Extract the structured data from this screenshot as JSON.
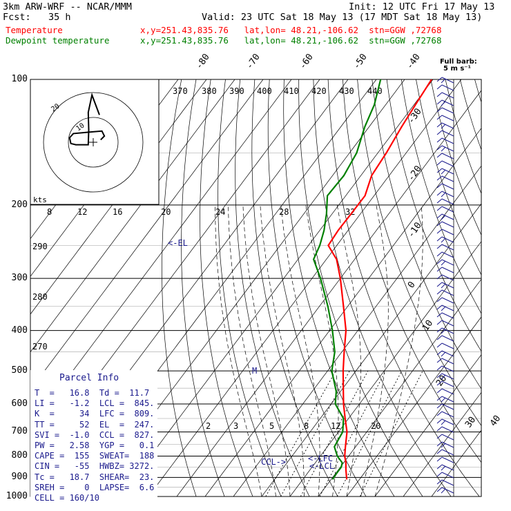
{
  "header": {
    "model": "3km ARW-WRF -- NCAR/MMM",
    "init": "Init: 12 UTC Fri 17 May 13",
    "fcst_label": "Fcst:",
    "fcst_value": "35 h",
    "valid": "Valid: 23 UTC Sat 18 May 13 (17 MDT Sat 18 May 13)",
    "temperature_label": "Temperature",
    "dewpoint_label": "Dewpoint temperature",
    "location_t": "x,y=251.43,835.76   lat,lon= 48.21,-106.62  stn=GGW ,72768",
    "location_td": "x,y=251.43,835.76   lat,lon= 48.21,-106.62  stn=GGW ,72768"
  },
  "barb_legend": {
    "line1": "Full barb:",
    "line2": "5 m s⁻¹"
  },
  "colors": {
    "temperature": "#ff0000",
    "dewpoint": "#008000",
    "text_info": "#1a1a8c"
  },
  "pressure_labels": [
    "100",
    "200",
    "300",
    "400",
    "500",
    "600",
    "700",
    "800",
    "900",
    "1000"
  ],
  "hodograph": {
    "kts_label": "kts",
    "ring_labels": [
      "10",
      "20"
    ]
  },
  "parcel_info": {
    "title": "Parcel Info",
    "rows": [
      "T  =   16.8  Td =  11.7",
      "LI =   -1.2  LCL =  845.",
      "K  =     34  LFC =  809.",
      "TT =     52  EL  =  247.",
      "SVI =  -1.0  CCL =  827.",
      "PW =   2.58  YGP =   0.1",
      "CAPE =  155  SWEAT=  188",
      "CIN =   -55  HWBZ= 3272.",
      "Tc =   18.7  SHEAR=  23.",
      "SREH =    0  LAPSE=  6.6",
      "CELL = 160/10"
    ]
  },
  "level_markers": {
    "el": "<-EL",
    "lfc": "<-LFC",
    "lcl": "<-LCL",
    "ccl": "CCL->",
    "m": "M"
  },
  "chart_data": {
    "type": "line",
    "title": "",
    "xlabel": "",
    "ylabel": "",
    "ylim": [
      1000,
      100
    ],
    "isotherm_labels": [
      "-80",
      "-70",
      "-60",
      "-50",
      "-40",
      "-30",
      "-20",
      "-10",
      "0",
      "10",
      "20",
      "30",
      "40"
    ],
    "dry_adiabat_labels": [
      "370",
      "380",
      "390",
      "400",
      "410",
      "420",
      "430",
      "440",
      "290",
      "280",
      "270"
    ],
    "mixing_ratio_labels_upper": [
      "8",
      "12",
      "16",
      "20",
      "24",
      "28",
      "32"
    ],
    "mixing_ratio_labels_lower": [
      "2",
      "3",
      "5",
      "8",
      "12",
      "20"
    ],
    "series": [
      {
        "name": "Temperature",
        "p": [
          910,
          890,
          860,
          830,
          800,
          760,
          700,
          650,
          600,
          560,
          500,
          450,
          400,
          350,
          300,
          270,
          250,
          230,
          210,
          190,
          170,
          150,
          130,
          115,
          100
        ],
        "t": [
          15.5,
          14.3,
          12.5,
          10.8,
          8.6,
          6.4,
          3.0,
          -1.2,
          -5.6,
          -9.0,
          -14.5,
          -19.2,
          -24.2,
          -31.5,
          -40.0,
          -46.4,
          -53.0,
          -53.5,
          -53.3,
          -53.2,
          -56.2,
          -57.0,
          -58.5,
          -59.5,
          -60.5
        ]
      },
      {
        "name": "Dewpoint temperature",
        "p": [
          910,
          880,
          850,
          830,
          800,
          760,
          700,
          650,
          600,
          560,
          500,
          450,
          400,
          350,
          300,
          270,
          250,
          230,
          210,
          190,
          170,
          150,
          130,
          115,
          100
        ],
        "t": [
          10.5,
          10.3,
          10.3,
          9.5,
          6.0,
          2.5,
          1.5,
          -1.8,
          -8.5,
          -11.5,
          -18.5,
          -22.5,
          -29.0,
          -37.0,
          -47.0,
          -54.5,
          -56.0,
          -58.5,
          -62.0,
          -66.5,
          -66.0,
          -67.5,
          -71.5,
          -74.0,
          -78.5
        ]
      }
    ],
    "hodograph_trace": {
      "u": [
        3.0,
        4.5,
        3.5,
        -2.5,
        -8.0,
        -9.5,
        -9.0,
        -7.0,
        -2.0,
        -1.8,
        -2.0,
        -0.5,
        2.5
      ],
      "v": [
        1.0,
        2.5,
        4.5,
        4.0,
        3.5,
        1.8,
        -0.5,
        -1.0,
        -1.0,
        5.0,
        12.0,
        19.0,
        11.0
      ]
    }
  }
}
